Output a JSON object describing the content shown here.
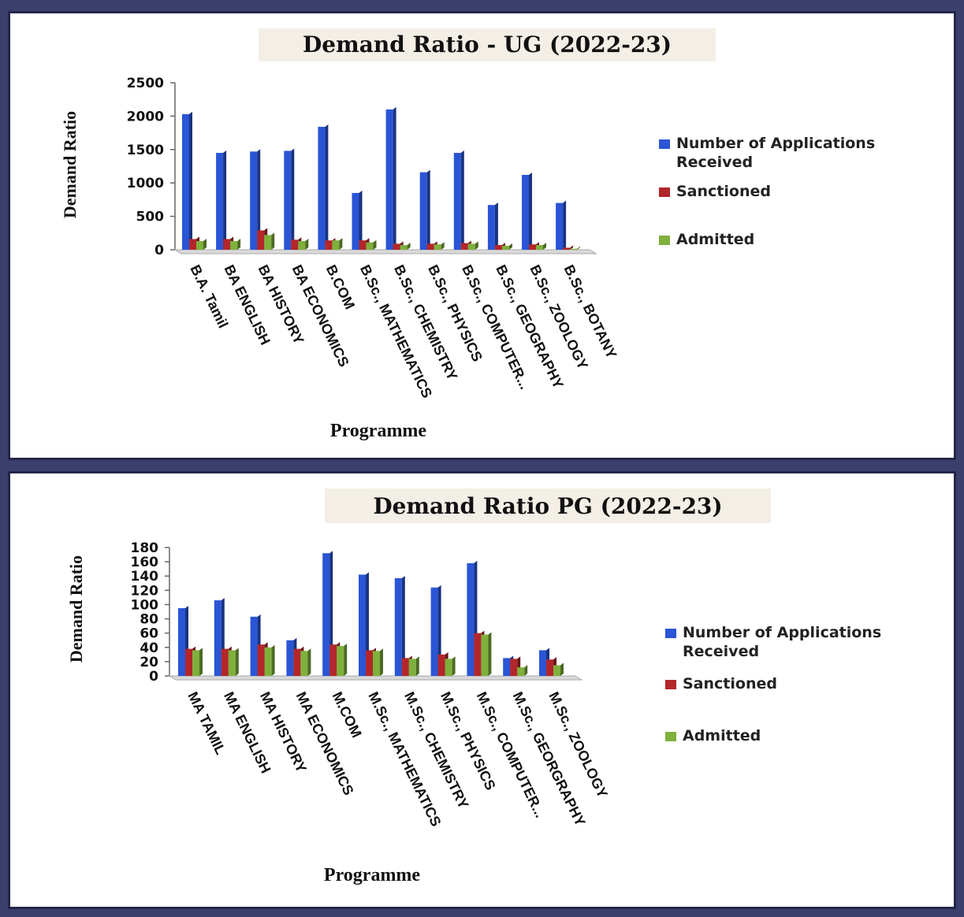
{
  "chart_data": [
    {
      "type": "bar",
      "title": "Demand Ratio - UG (2022-23)",
      "xlabel": "Programme",
      "ylabel": "Demand Ratio",
      "ylim": [
        0,
        2500
      ],
      "yticks": [
        0,
        500,
        1000,
        1500,
        2000,
        2500
      ],
      "categories": [
        "B.A. Tamil",
        "BA ENGLISH",
        "BA HISTORY",
        "BA ECONOMICS",
        "B.COM",
        "B.Sc., MATHEMATICS",
        "B.Sc., CHEMISTRY",
        "B.Sc., PHYSICS",
        "B.Sc., COMPUTER...",
        "B.Sc., GEOGRAPHY",
        "B.Sc., ZOOLOGY",
        "B.Sc., BOTANY"
      ],
      "series": [
        {
          "name": "Number of  Applications Received",
          "values": [
            2030,
            1450,
            1470,
            1480,
            1840,
            850,
            2100,
            1160,
            1450,
            670,
            1120,
            700
          ]
        },
        {
          "name": "Sanctioned",
          "values": [
            160,
            160,
            290,
            150,
            140,
            140,
            90,
            90,
            100,
            70,
            80,
            30
          ]
        },
        {
          "name": "Admitted",
          "values": [
            130,
            130,
            220,
            130,
            140,
            110,
            70,
            80,
            90,
            60,
            70,
            15
          ]
        }
      ],
      "colors": [
        "#2a55d6",
        "#b3262a",
        "#7fb03c"
      ],
      "legend_position": "right",
      "grid": false
    },
    {
      "type": "bar",
      "title": "Demand Ratio  PG (2022-23)",
      "xlabel": "Programme",
      "ylabel": "Demand Ratio",
      "ylim": [
        0,
        180
      ],
      "yticks": [
        0,
        20,
        40,
        60,
        80,
        100,
        120,
        140,
        160,
        180
      ],
      "categories": [
        "MA TAMIL",
        "MA ENGLISH",
        "MA HISTORY",
        "MA ECONOMICS",
        "M.COM",
        "M.Sc., MATHEMATICS",
        "M.Sc., CHEMISTRY",
        "M.Sc., PHYSICS",
        "M.Sc., COMPUTER...",
        "M.Sc., GEORGRAPHY",
        "M.Sc., ZOOLOGY"
      ],
      "series": [
        {
          "name": "Number of  Applications Received",
          "values": [
            95,
            106,
            83,
            50,
            172,
            142,
            137,
            124,
            158,
            25,
            36
          ]
        },
        {
          "name": "Sanctioned",
          "values": [
            38,
            38,
            44,
            38,
            44,
            36,
            25,
            30,
            60,
            24,
            23
          ]
        },
        {
          "name": "Admitted",
          "values": [
            36,
            36,
            40,
            35,
            42,
            35,
            24,
            24,
            58,
            12,
            15
          ]
        }
      ],
      "colors": [
        "#2a55d6",
        "#b3262a",
        "#7fb03c"
      ],
      "legend_position": "right",
      "grid": false
    }
  ]
}
